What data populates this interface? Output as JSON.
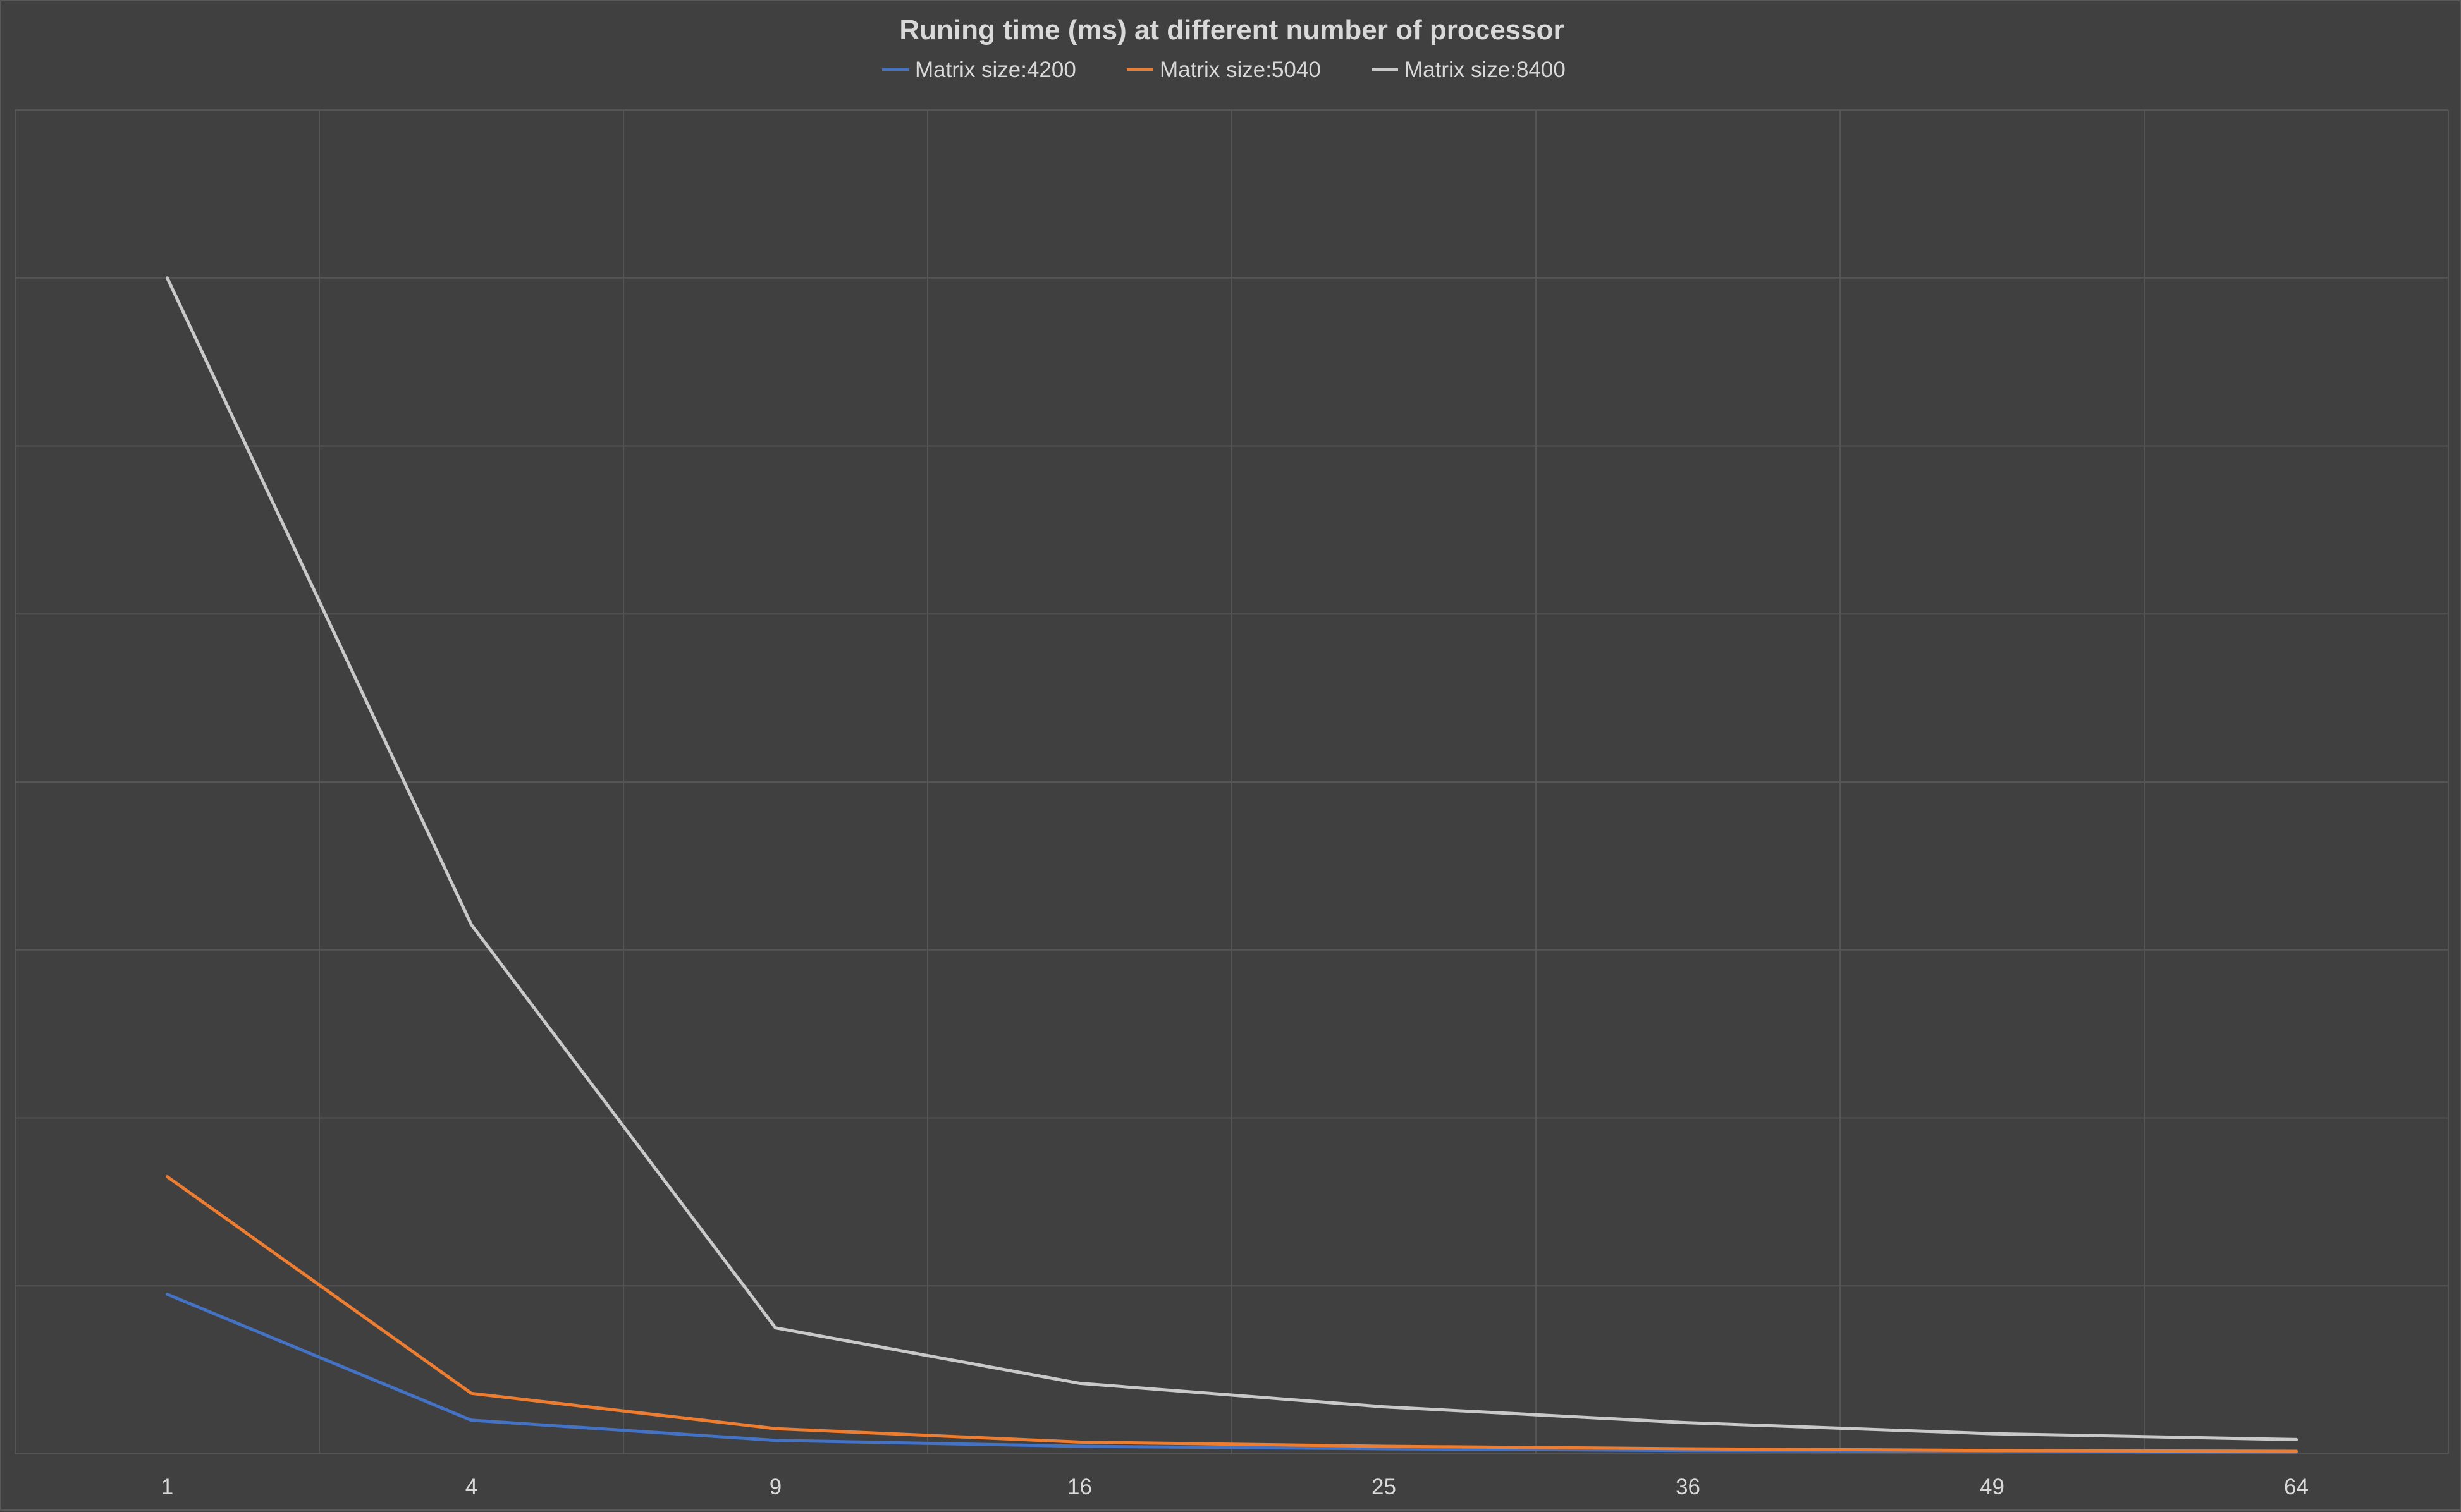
{
  "chart_data": {
    "type": "line",
    "title": "Runing time (ms) at different number of processor",
    "xlabel": "",
    "ylabel": "",
    "categories": [
      "1",
      "4",
      "9",
      "16",
      "25",
      "36",
      "49",
      "64"
    ],
    "ylim": [
      0,
      8
    ],
    "grid": true,
    "legend": "top",
    "series": [
      {
        "name": "Matrix size:4200",
        "color": "#4472c4",
        "values": [
          0.95,
          0.2,
          0.08,
          0.045,
          0.03,
          0.02,
          0.015,
          0.01
        ]
      },
      {
        "name": "Matrix size:5040",
        "color": "#ed7d31",
        "values": [
          1.65,
          0.36,
          0.15,
          0.07,
          0.045,
          0.03,
          0.02,
          0.015
        ]
      },
      {
        "name": "Matrix size:8400",
        "color": "#c9c9c9",
        "values": [
          7.0,
          3.15,
          0.75,
          0.42,
          0.28,
          0.185,
          0.12,
          0.085
        ]
      }
    ]
  }
}
